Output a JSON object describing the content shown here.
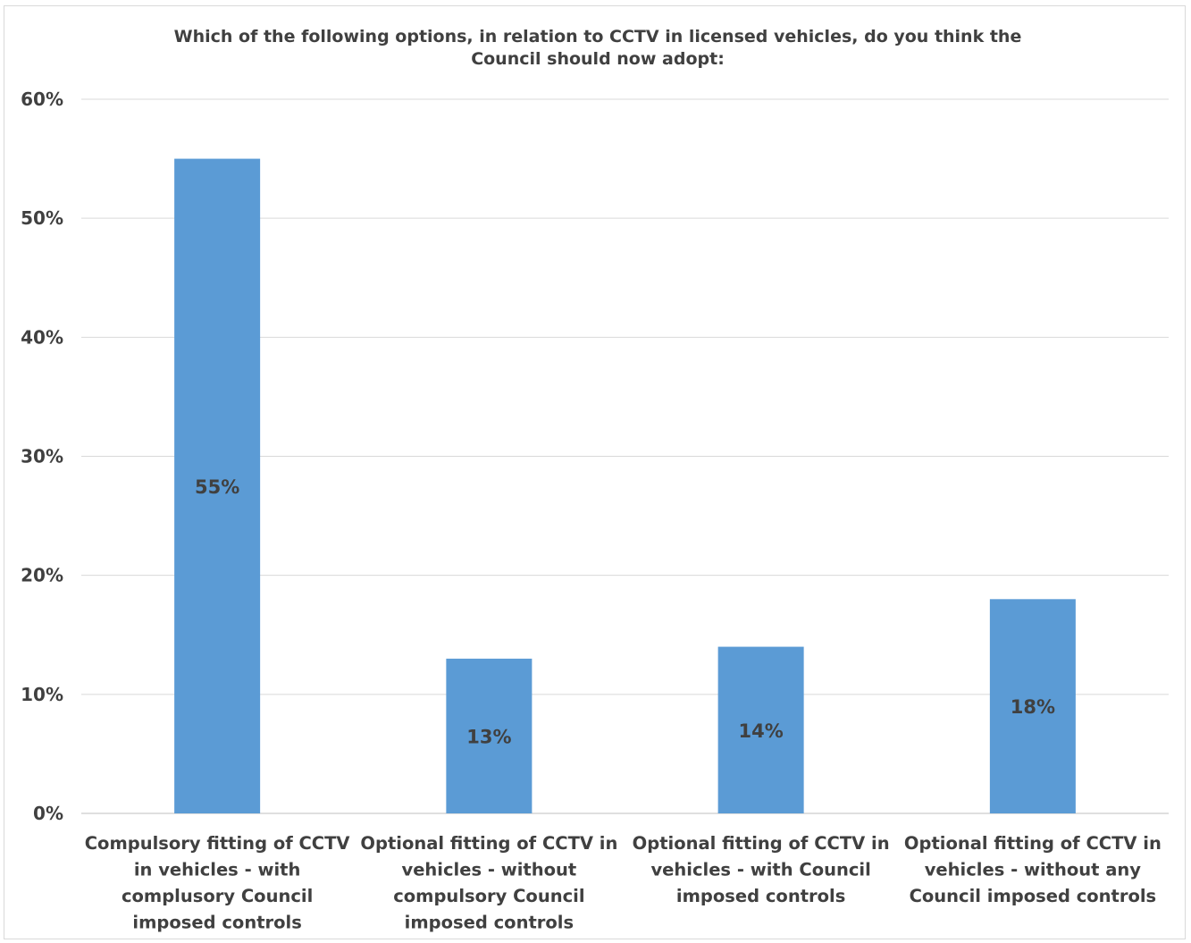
{
  "chart_data": {
    "type": "bar",
    "title": [
      "Which of the following options, in relation to CCTV in licensed vehicles, do you think the",
      "Council should now adopt:"
    ],
    "xlabel": "",
    "ylabel": "",
    "ylim": [
      0,
      60
    ],
    "yticks": [
      0,
      10,
      20,
      30,
      40,
      50,
      60
    ],
    "ytick_labels": [
      "0%",
      "10%",
      "20%",
      "30%",
      "40%",
      "50%",
      "60%"
    ],
    "grid": true,
    "legend": "none",
    "categories": [
      [
        "Compulsory fitting of CCTV",
        "in vehicles - with",
        "complusory Council",
        "imposed controls"
      ],
      [
        "Optional fitting of CCTV in",
        "vehicles - without",
        "compulsory Council",
        "imposed controls"
      ],
      [
        "Optional fitting of CCTV in",
        "vehicles - with Council",
        "imposed controls"
      ],
      [
        "Optional fitting of CCTV in",
        "vehicles - without any",
        "Council imposed controls"
      ]
    ],
    "values": [
      55,
      13,
      14,
      18
    ],
    "data_labels": [
      "55%",
      "13%",
      "14%",
      "18%"
    ],
    "bar_color": "#5b9bd5",
    "grid_color": "#d9d9d9",
    "text_color": "#404040"
  }
}
